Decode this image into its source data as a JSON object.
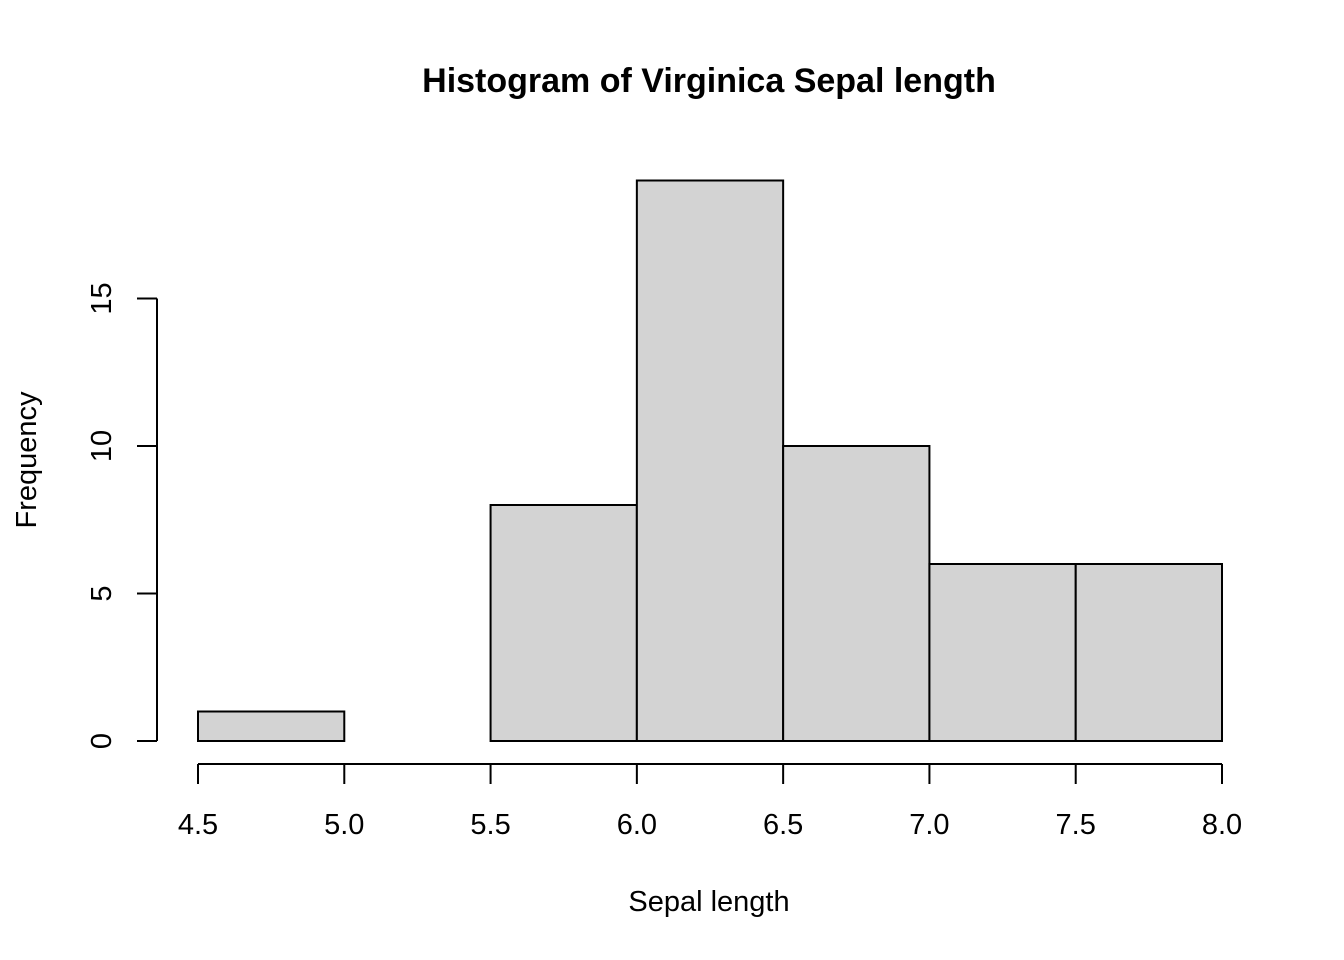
{
  "chart_data": {
    "type": "bar",
    "title": "Histogram of Virginica Sepal length",
    "xlabel": "Sepal length",
    "ylabel": "Frequency",
    "bin_edges": [
      4.5,
      5.0,
      5.5,
      6.0,
      6.5,
      7.0,
      7.5,
      8.0
    ],
    "values": [
      1,
      0,
      8,
      19,
      10,
      6,
      6
    ],
    "x_ticks": [
      "4.5",
      "5.0",
      "5.5",
      "6.0",
      "6.5",
      "7.0",
      "7.5",
      "8.0"
    ],
    "y_ticks": [
      "0",
      "5",
      "10",
      "15"
    ],
    "xlim": [
      4.5,
      8.0
    ],
    "ylim": [
      0,
      19
    ],
    "bar_color": "#d3d3d3",
    "grid": false,
    "legend": "none"
  }
}
